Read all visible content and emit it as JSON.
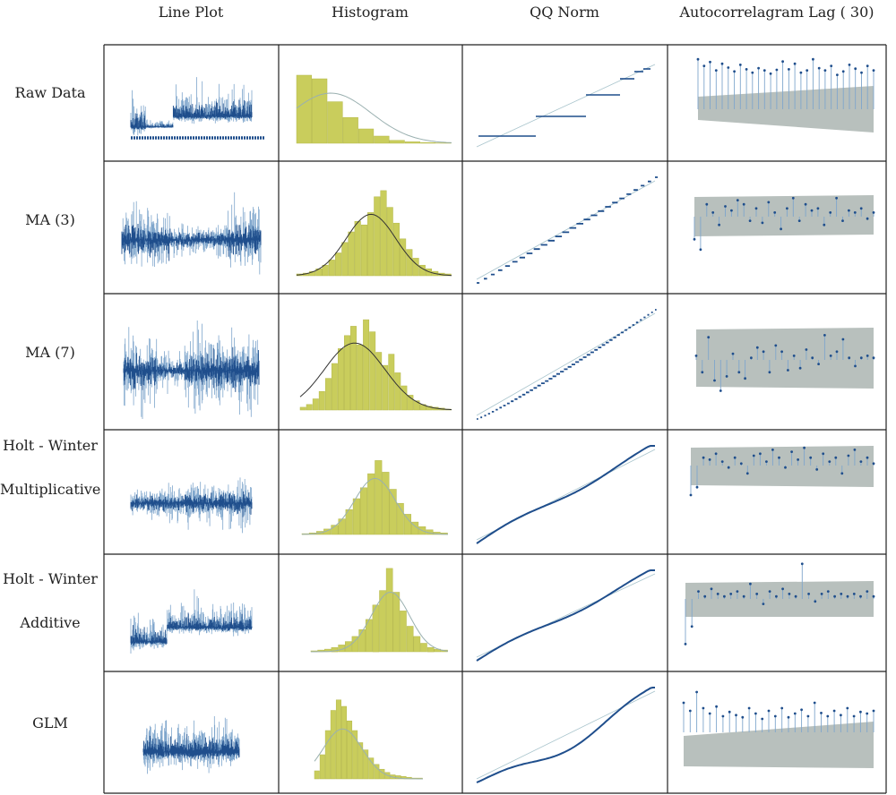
{
  "columns": [
    "Line Plot",
    "Histogram",
    "QQ Norm",
    "Autocorrelagram Lag ( 30)"
  ],
  "rows": [
    {
      "key": "raw",
      "label_lines": [
        "Raw Data"
      ]
    },
    {
      "key": "ma3",
      "label_lines": [
        "MA (3)"
      ]
    },
    {
      "key": "ma7",
      "label_lines": [
        "MA (7)"
      ]
    },
    {
      "key": "hwm",
      "label_lines": [
        "Holt - Winter",
        "Multiplicative"
      ]
    },
    {
      "key": "hwa",
      "label_lines": [
        "Holt - Winter",
        "Additive"
      ]
    },
    {
      "key": "glm",
      "label_lines": [
        "GLM"
      ]
    }
  ],
  "colors": {
    "series": "#1f4e8c",
    "series_light": "#7fa6cc",
    "hist_fill": "#c9cd5c",
    "hist_stroke": "#b4b84a",
    "ci_band": "#b8c0bd",
    "curve_dark": "#333333",
    "curve_light": "#9ab0b0",
    "grid_line": "#222222"
  },
  "chart_data": [
    {
      "type": "line",
      "panel": "Line Plot",
      "row": "Raw Data",
      "level": "low-base with bursts"
    },
    {
      "type": "bar",
      "panel": "Histogram",
      "row": "Raw Data",
      "values": [
        0.95,
        0.9,
        0.58,
        0.36,
        0.2,
        0.1,
        0.04,
        0.02,
        0.01,
        0.005
      ]
    },
    {
      "type": "scatter",
      "panel": "QQ Norm",
      "row": "Raw Data",
      "pattern": "stepped"
    },
    {
      "type": "bar",
      "panel": "Autocorrelagram",
      "row": "Raw Data",
      "lags": 30,
      "values": [
        0.9,
        0.78,
        0.85,
        0.7,
        0.82,
        0.75,
        0.68,
        0.8,
        0.72,
        0.66,
        0.74,
        0.7,
        0.64,
        0.71,
        0.86,
        0.72,
        0.82,
        0.66,
        0.7,
        0.9,
        0.74,
        0.7,
        0.78,
        0.62,
        0.68,
        0.8,
        0.73,
        0.66,
        0.78,
        0.7
      ]
    },
    {
      "type": "line",
      "panel": "Line Plot",
      "row": "MA (3)"
    },
    {
      "type": "bar",
      "panel": "Histogram",
      "row": "MA (3)",
      "values": [
        0.02,
        0.03,
        0.05,
        0.08,
        0.12,
        0.18,
        0.26,
        0.38,
        0.5,
        0.62,
        0.58,
        0.72,
        0.9,
        0.97,
        0.78,
        0.6,
        0.42,
        0.3,
        0.2,
        0.12,
        0.08,
        0.05,
        0.03,
        0.02
      ]
    },
    {
      "type": "scatter",
      "panel": "QQ Norm",
      "row": "MA (3)",
      "pattern": "stepped"
    },
    {
      "type": "bar",
      "panel": "Autocorrelagram",
      "row": "MA (3)",
      "lags": 30,
      "values": [
        -0.55,
        -0.8,
        0.3,
        0.1,
        -0.2,
        0.25,
        0.15,
        0.4,
        0.3,
        -0.1,
        0.2,
        -0.15,
        0.35,
        0.1,
        -0.3,
        0.2,
        0.45,
        -0.1,
        0.3,
        0.15,
        0.2,
        -0.2,
        0.1,
        0.45,
        -0.1,
        0.15,
        0.1,
        0.2,
        -0.05,
        0.1
      ]
    },
    {
      "type": "line",
      "panel": "Line Plot",
      "row": "MA (7)"
    },
    {
      "type": "bar",
      "panel": "Histogram",
      "row": "MA (7)",
      "values": [
        0.03,
        0.06,
        0.12,
        0.2,
        0.34,
        0.5,
        0.66,
        0.8,
        0.9,
        0.7,
        0.97,
        0.84,
        0.62,
        0.48,
        0.6,
        0.4,
        0.26,
        0.16,
        0.1,
        0.06,
        0.04,
        0.03,
        0.02,
        0.01
      ]
    },
    {
      "type": "scatter",
      "panel": "QQ Norm",
      "row": "MA (7)",
      "pattern": "stepped-fine"
    },
    {
      "type": "bar",
      "panel": "Autocorrelagram",
      "row": "MA (7)",
      "lags": 30,
      "values": [
        0.1,
        -0.3,
        0.55,
        -0.5,
        -0.75,
        -0.4,
        0.15,
        -0.3,
        -0.45,
        0.05,
        0.3,
        0.2,
        -0.3,
        0.35,
        0.2,
        -0.25,
        0.1,
        -0.2,
        0.25,
        0.05,
        -0.1,
        0.6,
        0.1,
        0.2,
        0.5,
        0.05,
        -0.15,
        0.05,
        0.1,
        0.05
      ]
    },
    {
      "type": "line",
      "panel": "Line Plot",
      "row": "Holt - Winter Multiplicative"
    },
    {
      "type": "bar",
      "panel": "Histogram",
      "row": "Holt - Winter Multiplicative",
      "values": [
        0.01,
        0.02,
        0.04,
        0.07,
        0.12,
        0.2,
        0.32,
        0.46,
        0.6,
        0.78,
        0.95,
        0.8,
        0.58,
        0.4,
        0.26,
        0.16,
        0.1,
        0.06,
        0.03,
        0.02
      ]
    },
    {
      "type": "scatter",
      "panel": "QQ Norm",
      "row": "Holt - Winter Multiplicative",
      "pattern": "smooth"
    },
    {
      "type": "bar",
      "panel": "Autocorrelagram",
      "row": "Holt - Winter Multiplicative",
      "lags": 30,
      "values": [
        -0.75,
        -0.55,
        0.2,
        0.15,
        0.3,
        0.1,
        -0.05,
        0.2,
        0.05,
        -0.2,
        0.25,
        0.3,
        0.1,
        0.4,
        0.2,
        -0.05,
        0.35,
        0.15,
        0.45,
        0.2,
        -0.1,
        0.3,
        0.1,
        0.2,
        -0.2,
        0.25,
        0.4,
        0.1,
        0.2,
        0.05
      ]
    },
    {
      "type": "line",
      "panel": "Line Plot",
      "row": "Holt - Winter Additive"
    },
    {
      "type": "bar",
      "panel": "Histogram",
      "row": "Holt - Winter Additive",
      "values": [
        0.01,
        0.02,
        0.03,
        0.05,
        0.08,
        0.12,
        0.18,
        0.26,
        0.38,
        0.55,
        0.72,
        0.98,
        0.7,
        0.48,
        0.3,
        0.18,
        0.1,
        0.05,
        0.03,
        0.02
      ]
    },
    {
      "type": "scatter",
      "panel": "QQ Norm",
      "row": "Holt - Winter Additive",
      "pattern": "smooth"
    },
    {
      "type": "bar",
      "panel": "Autocorrelagram",
      "row": "Holt - Winter Additive",
      "lags": 30,
      "values": [
        -0.9,
        -0.55,
        0.15,
        0.05,
        0.2,
        0.1,
        0.05,
        0.1,
        0.15,
        0.05,
        0.3,
        0.1,
        -0.1,
        0.15,
        0.05,
        0.2,
        0.1,
        0.05,
        0.7,
        0.1,
        -0.05,
        0.1,
        0.15,
        0.05,
        0.1,
        0.05,
        0.1,
        0.05,
        0.15,
        0.05
      ]
    },
    {
      "type": "line",
      "panel": "Line Plot",
      "row": "GLM"
    },
    {
      "type": "bar",
      "panel": "Histogram",
      "row": "GLM",
      "values": [
        0.1,
        0.3,
        0.6,
        0.85,
        0.98,
        0.9,
        0.72,
        0.6,
        0.45,
        0.36,
        0.26,
        0.18,
        0.12,
        0.08,
        0.05,
        0.04,
        0.03,
        0.02,
        0.01,
        0.01
      ]
    },
    {
      "type": "scatter",
      "panel": "QQ Norm",
      "row": "GLM",
      "pattern": "smooth-convex"
    },
    {
      "type": "bar",
      "panel": "Autocorrelagram",
      "row": "GLM",
      "lags": 30,
      "values": [
        0.55,
        0.4,
        0.75,
        0.45,
        0.35,
        0.48,
        0.3,
        0.38,
        0.32,
        0.28,
        0.45,
        0.35,
        0.25,
        0.4,
        0.3,
        0.45,
        0.28,
        0.35,
        0.42,
        0.3,
        0.55,
        0.36,
        0.3,
        0.4,
        0.32,
        0.45,
        0.3,
        0.38,
        0.35,
        0.4
      ]
    }
  ]
}
